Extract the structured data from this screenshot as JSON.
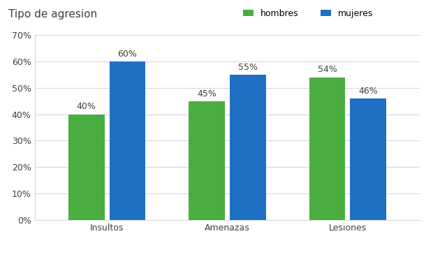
{
  "chart_data": {
    "type": "bar",
    "title": "Tipo de agresion",
    "categories": [
      "Insultos",
      "Amenazas",
      "Lesiones"
    ],
    "series": [
      {
        "name": "hombres",
        "color": "#4aad3f",
        "values": [
          40,
          45,
          54
        ],
        "value_labels": [
          "40%",
          "45%",
          "54%"
        ]
      },
      {
        "name": "mujeres",
        "color": "#1f6fc5",
        "values": [
          60,
          55,
          46
        ],
        "value_labels": [
          "60%",
          "55%",
          "46%"
        ]
      }
    ],
    "ylim": [
      0,
      70
    ],
    "yticks": [
      {
        "value": 0,
        "label": "0%"
      },
      {
        "value": 10,
        "label": "10%"
      },
      {
        "value": 20,
        "label": "20%"
      },
      {
        "value": 30,
        "label": "30%"
      },
      {
        "value": 40,
        "label": "40%"
      },
      {
        "value": 50,
        "label": "50%"
      },
      {
        "value": 60,
        "label": "60%"
      },
      {
        "value": 70,
        "label": "70%"
      }
    ],
    "grid": true,
    "legend": "upper right",
    "data_labels": true
  }
}
